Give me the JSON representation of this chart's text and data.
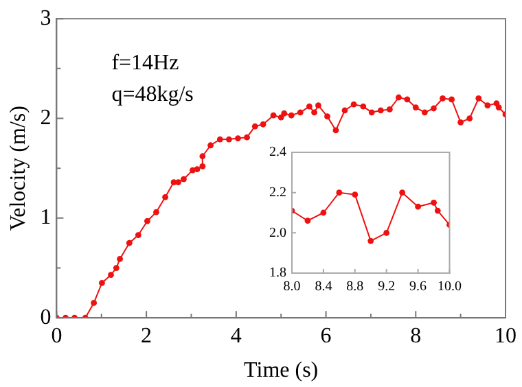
{
  "chart_data": [
    {
      "type": "line",
      "xlabel": "Time (s)",
      "ylabel": "Velocity (m/s)",
      "color": "#ee1111",
      "marker": "circle",
      "annotations": [
        "f=14Hz",
        "q=48kg/s"
      ],
      "xlim": [
        0,
        10
      ],
      "ylim": [
        0,
        3
      ],
      "xticks": [
        0,
        {
          "value": 1,
          "label": null
        },
        2,
        {
          "value": 3,
          "label": null
        },
        4,
        {
          "value": 5,
          "label": null
        },
        6,
        {
          "value": 7,
          "label": null
        },
        8,
        {
          "value": 9,
          "label": null
        },
        10
      ],
      "yticks": [
        0,
        {
          "value": 0.5,
          "label": null
        },
        1,
        {
          "value": 1.5,
          "label": null
        },
        2,
        {
          "value": 2.5,
          "label": null
        },
        3
      ],
      "x": [
        0,
        0.2,
        0.4,
        0.64,
        0.83,
        1.01,
        1.21,
        1.33,
        1.41,
        1.62,
        1.82,
        2.02,
        2.22,
        2.42,
        2.61,
        2.71,
        2.83,
        3.03,
        3.13,
        3.25,
        3.25,
        3.43,
        3.64,
        3.84,
        4.04,
        4.24,
        4.42,
        4.6,
        4.83,
        5.0,
        5.07,
        5.23,
        5.43,
        5.63,
        5.74,
        5.83,
        6.03,
        6.22,
        6.42,
        6.62,
        6.83,
        7.02,
        7.22,
        7.42,
        7.62,
        7.81,
        8.0,
        8.2,
        8.4,
        8.6,
        8.8,
        9.0,
        9.2,
        9.4,
        9.6,
        9.8,
        9.85,
        10.0
      ],
      "values": [
        0,
        0,
        0,
        0,
        0.15,
        0.35,
        0.43,
        0.5,
        0.59,
        0.75,
        0.83,
        0.97,
        1.06,
        1.21,
        1.36,
        1.36,
        1.39,
        1.48,
        1.49,
        1.52,
        1.62,
        1.73,
        1.79,
        1.79,
        1.8,
        1.81,
        1.92,
        1.94,
        2.03,
        2.01,
        2.05,
        2.03,
        2.06,
        2.12,
        2.06,
        2.13,
        2.02,
        1.88,
        2.08,
        2.14,
        2.12,
        2.06,
        2.08,
        2.09,
        2.21,
        2.19,
        2.11,
        2.06,
        2.1,
        2.2,
        2.19,
        1.96,
        2.0,
        2.2,
        2.13,
        2.15,
        2.11,
        2.04
      ]
    },
    {
      "type": "line",
      "color": "#ee1111",
      "marker": "circle",
      "xlim": [
        8,
        10
      ],
      "ylim": [
        1.8,
        2.4
      ],
      "xticks": [
        {
          "value": 8,
          "label": "8.0"
        },
        8.4,
        8.8,
        9.2,
        9.6,
        {
          "value": 10,
          "label": "10.0"
        }
      ],
      "yticks": [
        {
          "value": 1.8,
          "label": "1.8"
        },
        {
          "value": 2.0,
          "label": "2.0"
        },
        2.2,
        2.4
      ],
      "x": [
        8.0,
        8.2,
        8.4,
        8.6,
        8.8,
        9.0,
        9.2,
        9.4,
        9.6,
        9.8,
        9.85,
        10.0
      ],
      "values": [
        2.11,
        2.06,
        2.1,
        2.2,
        2.19,
        1.96,
        2.0,
        2.2,
        2.13,
        2.15,
        2.11,
        2.04
      ]
    }
  ]
}
